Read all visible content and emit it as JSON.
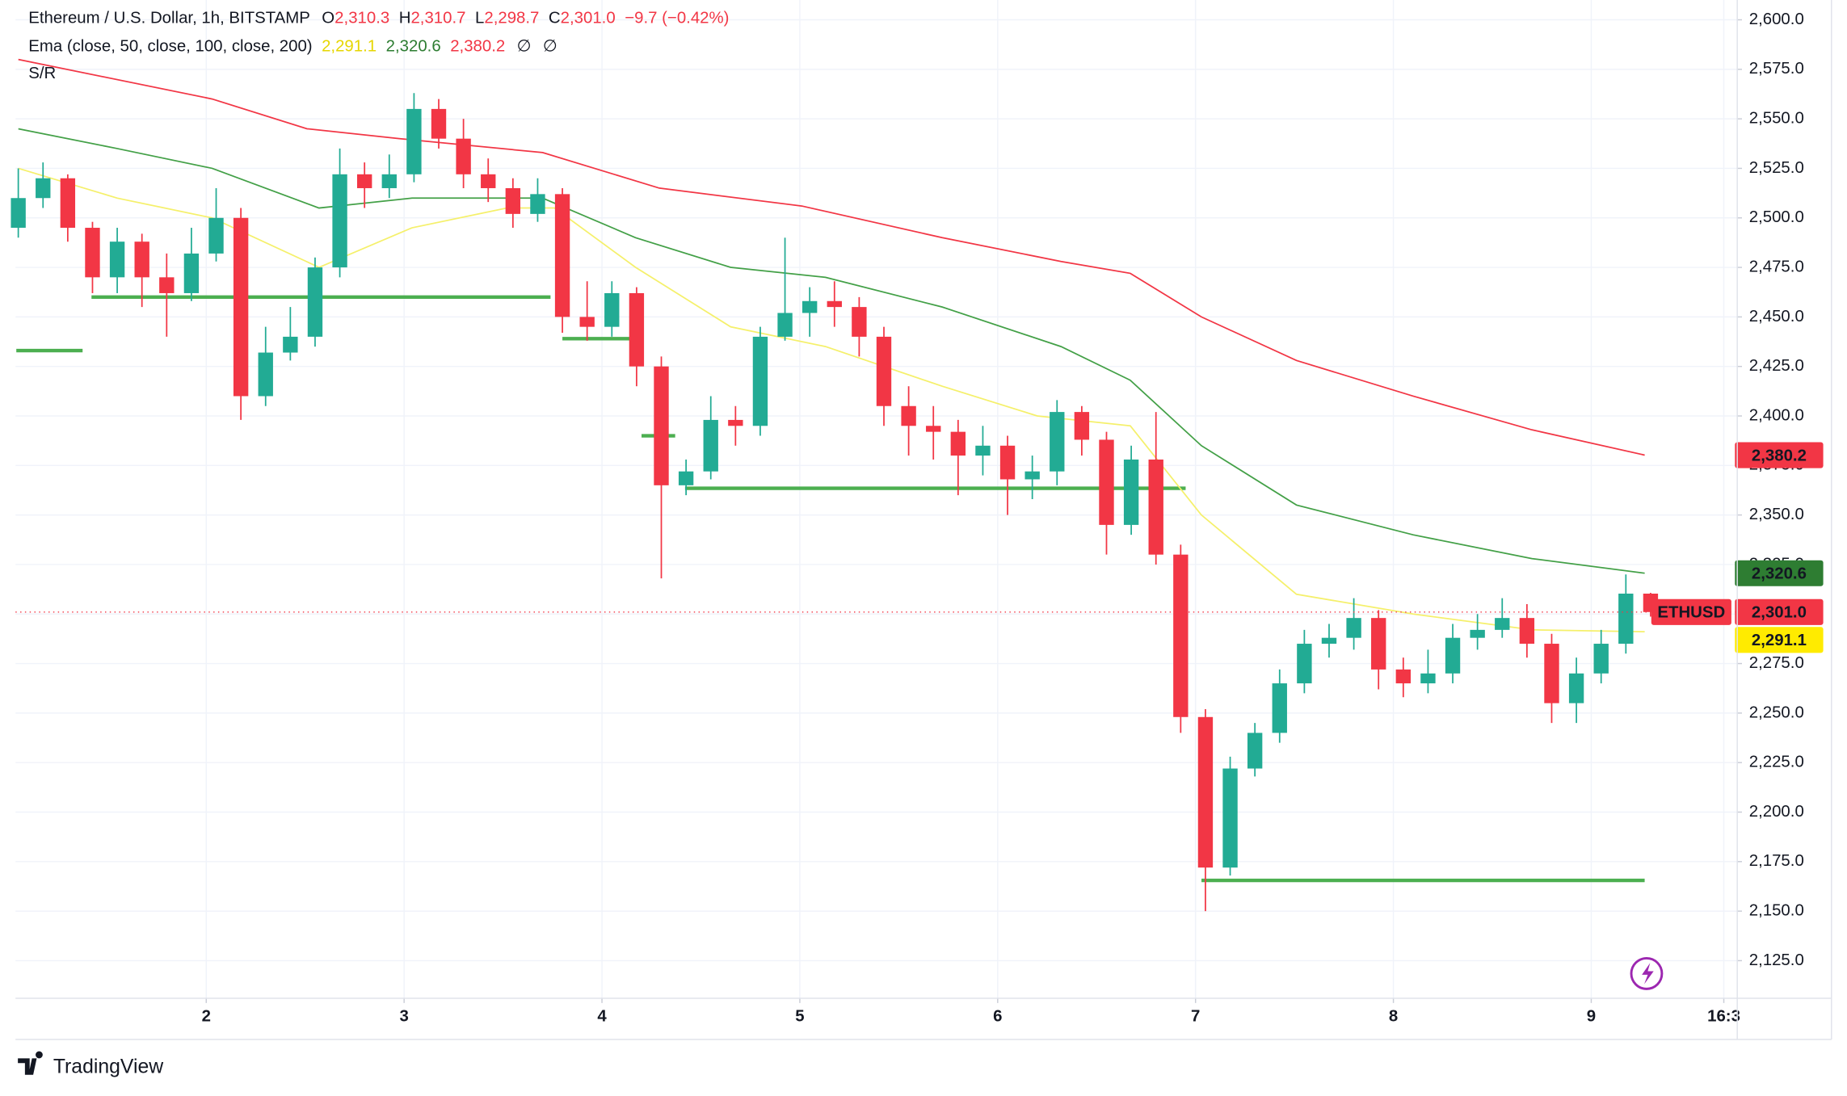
{
  "chart_data": {
    "type": "candlestick",
    "header": {
      "title": "Ethereum / U.S. Dollar, 1h, BITSTAMP",
      "o_label": "O",
      "o": "2,310.3",
      "h_label": "H",
      "h": "2,310.7",
      "l_label": "L",
      "l": "2,298.7",
      "c_label": "C",
      "c": "2,301.0",
      "change": "−9.7 (−0.42%)",
      "indicator": "Ema (close, 50, close, 100, close, 200)",
      "ema50": "2,291.1",
      "ema100": "2,320.6",
      "ema200": "2,380.2",
      "na1": "∅",
      "na2": "∅",
      "sr": "S/R",
      "symbol": "ETHUSD"
    },
    "x": [
      1.05,
      1.175,
      1.3,
      1.425,
      1.55,
      1.675,
      1.8,
      1.925,
      2.05,
      2.175,
      2.3,
      2.425,
      2.55,
      2.675,
      2.8,
      2.925,
      3.05,
      3.175,
      3.3,
      3.425,
      3.55,
      3.675,
      3.8,
      3.925,
      4.05,
      4.175,
      4.3,
      4.425,
      4.55,
      4.675,
      4.8,
      4.925,
      5.05,
      5.175,
      5.3,
      5.425,
      5.55,
      5.675,
      5.8,
      5.925,
      6.05,
      6.175,
      6.3,
      6.425,
      6.55,
      6.675,
      6.8,
      6.925,
      7.05,
      7.175,
      7.3,
      7.425,
      7.55,
      7.675,
      7.8,
      7.925,
      8.05,
      8.175,
      8.3,
      8.425,
      8.55,
      8.675,
      8.8,
      8.925,
      9.05,
      9.175,
      9.3
    ],
    "open": [
      2495,
      2510,
      2520,
      2495,
      2470,
      2488,
      2470,
      2462,
      2482,
      2500,
      2410,
      2432,
      2440,
      2475,
      2522,
      2515,
      2522,
      2555,
      2540,
      2522,
      2515,
      2502,
      2512,
      2450,
      2445,
      2462,
      2425,
      2365,
      2372,
      2398,
      2395,
      2440,
      2452,
      2458,
      2455,
      2440,
      2405,
      2395,
      2392,
      2380,
      2385,
      2368,
      2372,
      2402,
      2388,
      2345,
      2378,
      2330,
      2248,
      2172,
      2222,
      2240,
      2265,
      2285,
      2288,
      2298,
      2272,
      2265,
      2270,
      2288,
      2292,
      2298,
      2285,
      2255,
      2270,
      2285,
      2310.3
    ],
    "high": [
      2525,
      2528,
      2522,
      2498,
      2495,
      2492,
      2482,
      2495,
      2515,
      2505,
      2445,
      2455,
      2480,
      2535,
      2528,
      2532,
      2563,
      2560,
      2550,
      2530,
      2520,
      2520,
      2515,
      2468,
      2468,
      2465,
      2430,
      2378,
      2410,
      2405,
      2445,
      2490,
      2465,
      2468,
      2460,
      2445,
      2415,
      2405,
      2398,
      2395,
      2390,
      2380,
      2408,
      2405,
      2392,
      2385,
      2402,
      2335,
      2252,
      2228,
      2245,
      2272,
      2292,
      2295,
      2308,
      2302,
      2278,
      2282,
      2295,
      2300,
      2308,
      2305,
      2290,
      2278,
      2292,
      2320,
      2310.7
    ],
    "low": [
      2490,
      2505,
      2488,
      2462,
      2462,
      2455,
      2440,
      2458,
      2478,
      2398,
      2405,
      2428,
      2435,
      2470,
      2505,
      2510,
      2518,
      2535,
      2515,
      2508,
      2495,
      2498,
      2442,
      2438,
      2440,
      2415,
      2318,
      2360,
      2368,
      2385,
      2390,
      2438,
      2440,
      2445,
      2430,
      2395,
      2380,
      2378,
      2360,
      2370,
      2350,
      2358,
      2365,
      2380,
      2330,
      2340,
      2325,
      2240,
      2150,
      2168,
      2218,
      2235,
      2260,
      2278,
      2282,
      2262,
      2258,
      2260,
      2265,
      2282,
      2288,
      2278,
      2245,
      2245,
      2265,
      2280,
      2298.7
    ],
    "close": [
      2510,
      2520,
      2495,
      2470,
      2488,
      2470,
      2462,
      2482,
      2500,
      2410,
      2432,
      2440,
      2475,
      2522,
      2515,
      2522,
      2555,
      2540,
      2522,
      2515,
      2502,
      2512,
      2450,
      2445,
      2462,
      2425,
      2365,
      2372,
      2398,
      2395,
      2440,
      2452,
      2458,
      2455,
      2440,
      2405,
      2395,
      2392,
      2380,
      2385,
      2368,
      2372,
      2402,
      2388,
      2345,
      2378,
      2330,
      2248,
      2172,
      2222,
      2240,
      2265,
      2285,
      2288,
      2298,
      2272,
      2265,
      2270,
      2288,
      2292,
      2298,
      2285,
      2255,
      2270,
      2285,
      2310.3,
      2301
    ],
    "up_color": "#22ab94",
    "down_color": "#f23645",
    "emas": [
      {
        "name": "EMA 200",
        "color": "#f23645",
        "x": [
          1.05,
          2.03,
          2.51,
          2.98,
          3.7,
          4.29,
          5.01,
          5.72,
          6.32,
          6.67,
          7.03,
          7.51,
          8.1,
          8.7,
          9.27
        ],
        "values": [
          2580,
          2560,
          2545,
          2540,
          2533,
          2515,
          2506,
          2490,
          2478,
          2472,
          2450,
          2428,
          2410,
          2393,
          2380.2
        ]
      },
      {
        "name": "EMA 100",
        "color": "#43a047",
        "x": [
          1.05,
          1.55,
          2.03,
          2.57,
          3.04,
          3.7,
          4.17,
          4.65,
          5.13,
          5.72,
          6.32,
          6.67,
          7.03,
          7.51,
          8.1,
          8.7,
          9.27
        ],
        "values": [
          2545,
          2535,
          2525,
          2505,
          2510,
          2510,
          2490,
          2475,
          2470,
          2455,
          2435,
          2418,
          2385,
          2355,
          2340,
          2328,
          2320.6
        ]
      },
      {
        "name": "EMA 50",
        "color": "#f5f06b",
        "x": [
          1.05,
          1.55,
          2.03,
          2.57,
          3.04,
          3.52,
          3.76,
          4.17,
          4.65,
          5.13,
          5.72,
          6.2,
          6.67,
          7.03,
          7.51,
          8.1,
          8.7,
          9.27
        ],
        "values": [
          2525,
          2510,
          2500,
          2475,
          2495,
          2505,
          2505,
          2475,
          2445,
          2435,
          2415,
          2400,
          2395,
          2350,
          2310,
          2300,
          2292,
          2291.1
        ]
      }
    ],
    "sr_levels": [
      {
        "price": 2433,
        "x": [
          1.04,
          1.375
        ]
      },
      {
        "price": 2460,
        "x": [
          1.42,
          3.74
        ]
      },
      {
        "price": 2439,
        "x": [
          3.8,
          4.15
        ]
      },
      {
        "price": 2390,
        "x": [
          4.2,
          4.37
        ]
      },
      {
        "price": 2363.5,
        "x": [
          4.42,
          6.95
        ]
      },
      {
        "price": 2165.5,
        "x": [
          7.03,
          9.27
        ]
      }
    ],
    "sr_color": "#4caf50",
    "last_price": 2301,
    "xlim": [
      1.036,
      9.738
    ],
    "ylim": [
      2106,
      2610
    ],
    "xticks": [
      {
        "value": 2,
        "label": "2"
      },
      {
        "value": 3,
        "label": "3"
      },
      {
        "value": 4,
        "label": "4"
      },
      {
        "value": 5,
        "label": "5"
      },
      {
        "value": 6,
        "label": "6"
      },
      {
        "value": 7,
        "label": "7"
      },
      {
        "value": 8,
        "label": "8"
      },
      {
        "value": 9,
        "label": "9"
      },
      {
        "value": 9.67,
        "label": "16:3"
      }
    ],
    "yticks": [
      {
        "value": 2125,
        "label": "2,125.0"
      },
      {
        "value": 2150,
        "label": "2,150.0"
      },
      {
        "value": 2175,
        "label": "2,175.0"
      },
      {
        "value": 2200,
        "label": "2,200.0"
      },
      {
        "value": 2225,
        "label": "2,225.0"
      },
      {
        "value": 2250,
        "label": "2,250.0"
      },
      {
        "value": 2275,
        "label": "2,275.0"
      },
      {
        "value": 2300,
        "label": "2,300.0"
      },
      {
        "value": 2325,
        "label": "2,325.0"
      },
      {
        "value": 2350,
        "label": "2,350.0"
      },
      {
        "value": 2375,
        "label": "2,375.0"
      },
      {
        "value": 2400,
        "label": "2,400.0"
      },
      {
        "value": 2425,
        "label": "2,425.0"
      },
      {
        "value": 2450,
        "label": "2,450.0"
      },
      {
        "value": 2475,
        "label": "2,475.0"
      },
      {
        "value": 2500,
        "label": "2,500.0"
      },
      {
        "value": 2525,
        "label": "2,525.0"
      },
      {
        "value": 2550,
        "label": "2,550.0"
      },
      {
        "value": 2575,
        "label": "2,575.0"
      },
      {
        "value": 2600,
        "label": "2,600.0"
      }
    ],
    "grid": true,
    "brand": "TradingView"
  }
}
